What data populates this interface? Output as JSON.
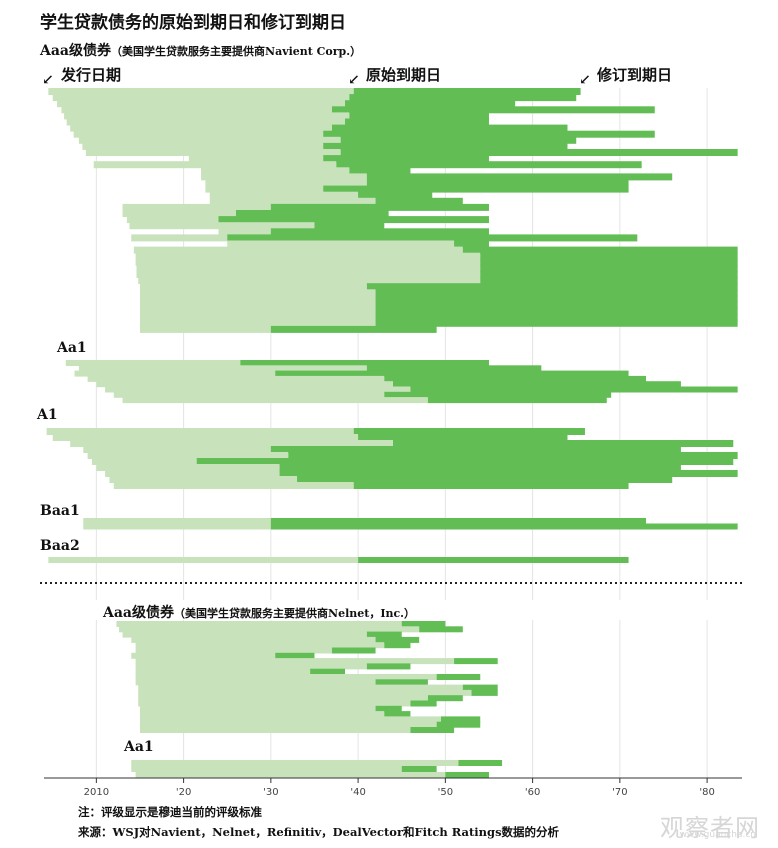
{
  "chart_data": {
    "type": "bar",
    "title": "学生贷款债务的原始到期日和修订到期日",
    "legend": {
      "issue": "发行日期",
      "original": "原始到期日",
      "revised": "修订到期日",
      "colors": {
        "original": "#c8e3bb",
        "revised": "#62bd55"
      }
    },
    "x_ticks": [
      "2010",
      "'20",
      "'30",
      "'40",
      "'50",
      "'60",
      "'70",
      "'80"
    ],
    "xlim": [
      2004,
      2084
    ],
    "note": "注：评级显示是穆迪当前的评级标准",
    "source": "来源：WSJ对Navient，Nelnet，Refinitiv，DealVector和Fitch Ratings数据的分析",
    "panels": [
      {
        "heading": "Aaa级债券",
        "subheading": "（美国学生贷款服务主要提供商Navient Corp.）",
        "groups": [
          {
            "rating": "Aaa",
            "show_label": false,
            "bonds": [
              [
                2004.5,
                2039.5,
                2065.5
              ],
              [
                2005,
                2039,
                2065
              ],
              [
                2005.5,
                2038.5,
                2058
              ],
              [
                2006,
                2037,
                2074
              ],
              [
                2006.3,
                2039,
                2055
              ],
              [
                2006.6,
                2038.5,
                2055
              ],
              [
                2007,
                2037,
                2064
              ],
              [
                2007.4,
                2036,
                2074
              ],
              [
                2008,
                2038,
                2065
              ],
              [
                2008.4,
                2036,
                2064
              ],
              [
                2008.8,
                2038,
                2083.5
              ],
              [
                2020.6,
                2036,
                2055
              ],
              [
                2009.7,
                2037.5,
                2072.5
              ],
              [
                2022,
                2039,
                2046
              ],
              [
                2022,
                2041,
                2076
              ],
              [
                2022.5,
                2041,
                2071
              ],
              [
                2022.5,
                2036,
                2071
              ],
              [
                2023,
                2040,
                2048.5
              ],
              [
                2023,
                2042,
                2052
              ],
              [
                2013,
                2030,
                2055
              ],
              [
                2013,
                2026,
                2043.5
              ],
              [
                2013.5,
                2024,
                2055
              ],
              [
                2013.8,
                2035,
                2043
              ],
              [
                2024,
                2030,
                2055
              ],
              [
                2014,
                2025,
                2072
              ],
              [
                2025,
                2051,
                2055
              ],
              [
                2014.3,
                2052,
                2083.5
              ],
              [
                2014.5,
                2054,
                2083.5
              ],
              [
                2014.5,
                2054,
                2083.5
              ],
              [
                2014.6,
                2054,
                2083.5
              ],
              [
                2014.6,
                2054,
                2083.5
              ],
              [
                2014.8,
                2054,
                2083.5
              ],
              [
                2015,
                2041,
                2083.5
              ],
              [
                2015,
                2042,
                2083.5
              ],
              [
                2015,
                2042,
                2083.5
              ],
              [
                2015,
                2042,
                2083.5
              ],
              [
                2015,
                2042,
                2083.5
              ],
              [
                2015,
                2042,
                2083.5
              ],
              [
                2015,
                2042,
                2083.5
              ],
              [
                2015,
                2030,
                2049
              ]
            ]
          },
          {
            "rating": "Aa1",
            "show_label": true,
            "bonds": [
              [
                2006.5,
                2026.5,
                2055
              ],
              [
                2008,
                2041,
                2061
              ],
              [
                2007.5,
                2030.5,
                2071
              ],
              [
                2009,
                2043,
                2073
              ],
              [
                2010,
                2044,
                2077
              ],
              [
                2011,
                2046,
                2083.5
              ],
              [
                2012,
                2043,
                2069
              ],
              [
                2013,
                2048,
                2068.5
              ]
            ]
          },
          {
            "rating": "A1",
            "show_label": true,
            "bonds": [
              [
                2004.3,
                2039.5,
                2066
              ],
              [
                2005,
                2040,
                2064
              ],
              [
                2007,
                2044,
                2083
              ],
              [
                2008.5,
                2030,
                2077
              ],
              [
                2009,
                2032,
                2083.5
              ],
              [
                2009.5,
                2021.5,
                2083
              ],
              [
                2010,
                2031,
                2077
              ],
              [
                2011,
                2031,
                2083.5
              ],
              [
                2011.5,
                2033,
                2076
              ],
              [
                2012,
                2039.5,
                2071
              ]
            ]
          },
          {
            "rating": "Baa1",
            "show_label": true,
            "bonds": [
              [
                2008.5,
                2030,
                2073
              ],
              [
                2008.5,
                2030,
                2083.5
              ]
            ]
          },
          {
            "rating": "Baa2",
            "show_label": true,
            "bonds": [
              [
                2004.5,
                2040,
                2071
              ]
            ]
          }
        ]
      },
      {
        "heading": "Aaa级债券",
        "subheading": "（美国学生贷款服务主要提供商Nelnet，Inc.）",
        "groups": [
          {
            "rating": "Aaa",
            "show_label": false,
            "bonds": [
              [
                2012.3,
                2045,
                2050
              ],
              [
                2012.6,
                2047,
                2052
              ],
              [
                2013,
                2041,
                2045
              ],
              [
                2014,
                2042,
                2047
              ],
              [
                2014.5,
                2043,
                2046
              ],
              [
                2014.5,
                2037,
                2042
              ],
              [
                2014,
                2030.5,
                2035
              ],
              [
                2014.5,
                2051,
                2056
              ],
              [
                2014.5,
                2041,
                2046
              ],
              [
                2014.5,
                2034.5,
                2038.5
              ],
              [
                2014.5,
                2049,
                2054
              ],
              [
                2014.5,
                2042,
                2048
              ],
              [
                2014.8,
                2052,
                2056
              ],
              [
                2014.8,
                2053,
                2056
              ],
              [
                2014.8,
                2048,
                2052
              ],
              [
                2014.8,
                2046,
                2049
              ],
              [
                2015,
                2042,
                2045
              ],
              [
                2015,
                2043,
                2046
              ],
              [
                2015,
                2049.5,
                2054
              ],
              [
                2015,
                2049,
                2054
              ],
              [
                2015,
                2046,
                2051
              ]
            ]
          },
          {
            "rating": "Aa1",
            "show_label": true,
            "bonds": [
              [
                2014,
                2051.5,
                2056.5
              ],
              [
                2014,
                2045,
                2049
              ],
              [
                2014.5,
                2050,
                2055
              ]
            ]
          }
        ]
      }
    ]
  }
}
